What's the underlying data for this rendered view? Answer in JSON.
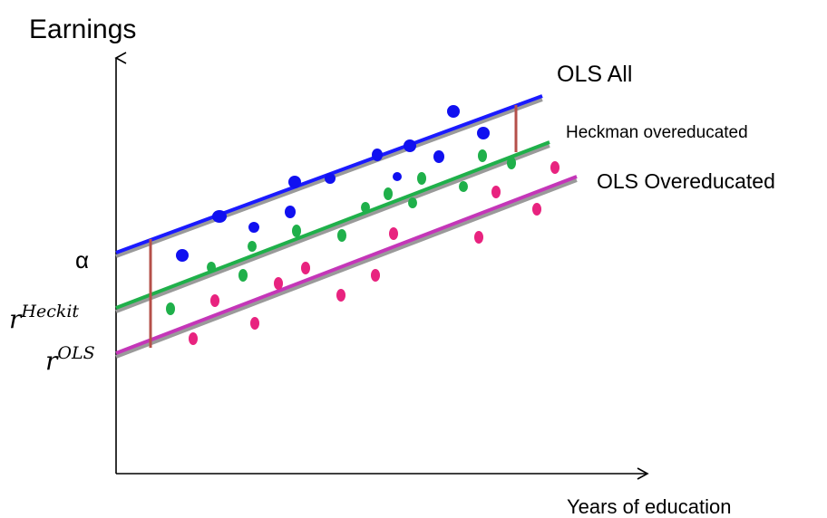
{
  "axes": {
    "y_label": "Earnings",
    "x_label": "Years of education"
  },
  "lines": {
    "ols_all": {
      "label": "OLS All",
      "color": "#1a1aff"
    },
    "heckman": {
      "label": "Heckman overeducated",
      "color": "#1fb04a"
    },
    "ols_over": {
      "label": "OLS Overeducated",
      "color": "#c436b8"
    }
  },
  "intercepts": {
    "alpha": "α",
    "r_heckit_base": "r",
    "r_heckit_sup": "Heckit",
    "r_ols_base": "r",
    "r_ols_sup": "OLS"
  },
  "colors": {
    "blue_dots": "#1010f0",
    "green_dots": "#1fb04a",
    "pink_dots": "#e8237f",
    "gap_marker": "#b5504a",
    "shadow": "#9a9a9a"
  }
}
